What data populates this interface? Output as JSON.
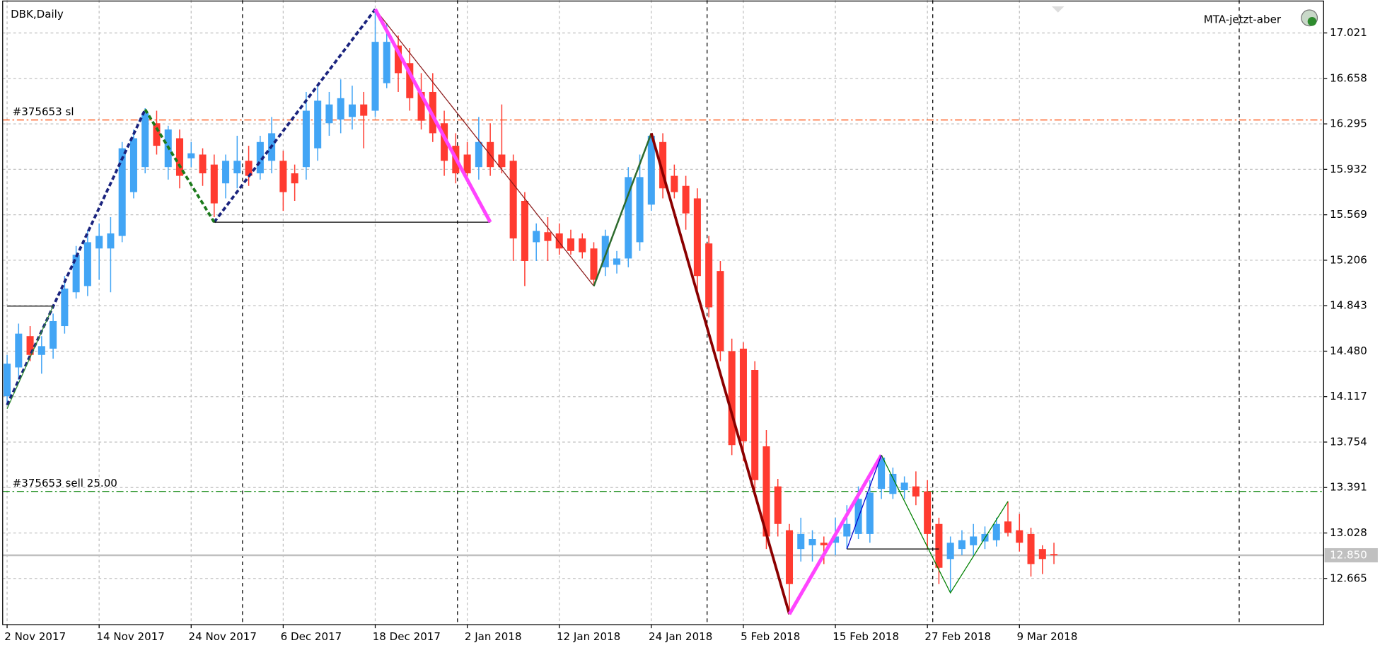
{
  "chart_data": {
    "type": "candlestick",
    "title": "DBK,Daily",
    "indicator": "MTA-jetzt-aber",
    "categories": [
      "2 Nov 2017",
      null,
      null,
      null,
      null,
      null,
      null,
      null,
      "14 Nov 2017",
      null,
      null,
      null,
      null,
      null,
      null,
      null,
      "24 Nov 2017",
      null,
      null,
      null,
      null,
      null,
      null,
      null,
      "6 Dec 2017",
      null,
      null,
      null,
      null,
      null,
      null,
      null,
      "18 Dec 2017",
      null,
      null,
      null,
      null,
      null,
      null,
      null,
      "2 Jan 2018",
      null,
      null,
      null,
      null,
      null,
      null,
      null,
      "12 Jan 2018",
      null,
      null,
      null,
      null,
      null,
      null,
      null,
      "24 Jan 2018",
      null,
      null,
      null,
      null,
      null,
      null,
      null,
      "5 Feb 2018",
      null,
      null,
      null,
      null,
      null,
      null,
      null,
      "15 Feb 2018",
      null,
      null,
      null,
      null,
      null,
      null,
      null,
      "27 Feb 2018",
      null,
      null,
      null,
      null,
      null,
      null,
      null,
      "9 Mar 2018",
      null,
      null,
      null
    ],
    "open": [
      14.12,
      14.35,
      14.6,
      14.45,
      14.5,
      14.68,
      14.95,
      15.0,
      15.3,
      15.3,
      15.4,
      15.75,
      15.95,
      16.3,
      15.95,
      16.18,
      16.02,
      16.05,
      15.97,
      15.82,
      15.9,
      16.0,
      15.9,
      16.0,
      16.0,
      15.9,
      15.95,
      16.1,
      16.3,
      16.33,
      16.35,
      16.45,
      16.4,
      16.62,
      16.92,
      16.78,
      16.55,
      16.55,
      16.3,
      16.12,
      16.05,
      15.95,
      16.15,
      16.05,
      16.0,
      15.68,
      15.35,
      15.43,
      15.42,
      15.38,
      15.38,
      15.3,
      15.15,
      15.17,
      15.22,
      15.35,
      15.65,
      16.15,
      15.88,
      15.8,
      15.7,
      15.34,
      15.12,
      14.48,
      14.5,
      14.33,
      13.72,
      13.4,
      13.05,
      12.9,
      12.93,
      12.95,
      12.95,
      13.0,
      13.02,
      13.02,
      13.38,
      13.34,
      13.37,
      13.4,
      13.36,
      13.1,
      12.82,
      12.9,
      12.93,
      12.96,
      12.97,
      13.12,
      13.05,
      13.02,
      12.9,
      12.86
    ],
    "high": [
      14.45,
      14.7,
      14.68,
      14.6,
      14.78,
      15.08,
      15.32,
      15.45,
      15.5,
      15.55,
      16.15,
      16.25,
      16.42,
      16.4,
      16.28,
      16.25,
      16.15,
      16.1,
      16.05,
      16.05,
      16.2,
      16.12,
      16.2,
      16.35,
      16.08,
      15.97,
      16.55,
      16.6,
      16.55,
      16.65,
      16.6,
      16.55,
      17.21,
      17.1,
      17.0,
      16.9,
      16.7,
      16.7,
      16.4,
      16.22,
      16.15,
      16.35,
      16.3,
      16.45,
      16.05,
      15.75,
      15.5,
      15.55,
      15.5,
      15.45,
      15.42,
      15.35,
      15.45,
      15.28,
      15.95,
      16.05,
      16.22,
      16.22,
      15.97,
      15.88,
      15.78,
      15.4,
      15.2,
      14.58,
      14.55,
      14.4,
      13.85,
      13.46,
      13.1,
      13.15,
      13.05,
      13.0,
      13.15,
      13.25,
      13.4,
      13.45,
      13.65,
      13.55,
      13.48,
      13.52,
      13.45,
      13.15,
      13.0,
      13.05,
      13.1,
      13.08,
      13.15,
      13.28,
      13.18,
      13.07,
      12.93,
      12.95
    ],
    "low": [
      14.05,
      14.25,
      14.4,
      14.3,
      14.42,
      14.62,
      14.9,
      14.92,
      15.05,
      14.95,
      15.35,
      15.7,
      15.9,
      16.05,
      15.85,
      15.78,
      15.95,
      15.8,
      15.55,
      15.7,
      15.78,
      15.8,
      15.85,
      15.9,
      15.6,
      15.68,
      15.85,
      16.0,
      16.2,
      16.22,
      16.25,
      16.1,
      16.35,
      16.58,
      16.55,
      16.4,
      16.25,
      16.15,
      15.88,
      15.82,
      15.85,
      15.85,
      15.88,
      15.9,
      15.2,
      15.0,
      15.2,
      15.2,
      15.25,
      15.25,
      15.22,
      15.0,
      15.08,
      15.1,
      15.15,
      15.28,
      15.6,
      15.7,
      15.7,
      15.45,
      14.95,
      14.75,
      14.4,
      13.65,
      13.6,
      13.35,
      12.9,
      13.0,
      12.38,
      12.8,
      12.8,
      12.78,
      12.85,
      12.9,
      12.98,
      12.95,
      13.3,
      13.3,
      13.3,
      13.25,
      12.9,
      12.62,
      12.55,
      12.85,
      12.85,
      12.9,
      12.92,
      13.0,
      12.88,
      12.68,
      12.7,
      12.78
    ],
    "close": [
      14.38,
      14.62,
      14.45,
      14.52,
      14.72,
      14.98,
      15.25,
      15.35,
      15.4,
      15.42,
      16.1,
      16.18,
      16.38,
      16.12,
      16.25,
      15.88,
      16.06,
      15.9,
      15.66,
      16.0,
      16.0,
      15.88,
      16.15,
      16.22,
      15.75,
      15.82,
      16.4,
      16.48,
      16.45,
      16.5,
      16.45,
      16.36,
      16.95,
      16.95,
      16.7,
      16.5,
      16.32,
      16.22,
      16.0,
      15.9,
      15.9,
      16.15,
      15.95,
      15.95,
      15.38,
      15.2,
      15.44,
      15.36,
      15.3,
      15.28,
      15.27,
      15.05,
      15.4,
      15.22,
      15.87,
      15.87,
      16.2,
      15.78,
      15.75,
      15.58,
      15.08,
      14.83,
      14.48,
      13.73,
      13.76,
      13.45,
      13.0,
      13.1,
      12.62,
      13.02,
      12.98,
      12.93,
      13.0,
      13.1,
      13.3,
      13.35,
      13.63,
      13.5,
      13.43,
      13.32,
      13.02,
      12.75,
      12.95,
      12.97,
      13.0,
      13.02,
      13.1,
      13.03,
      12.95,
      12.78,
      12.82,
      12.85
    ],
    "up_color": "#42a5f5",
    "down_color": "#ff3b30",
    "ylim": [
      12.296,
      17.283
    ],
    "yticks": [
      17.021,
      16.658,
      16.295,
      15.932,
      15.569,
      15.206,
      14.843,
      {
        "value": 14.48,
        "label": "14.480"
      },
      14.117,
      13.754,
      13.391,
      13.028,
      12.665
    ],
    "grid": true,
    "levels": [
      {
        "label": "#375653 sl",
        "value": 16.326,
        "color": "#ff4500"
      },
      {
        "label": "#375653 sell 25.00",
        "value": 13.36,
        "color": "#008000"
      }
    ],
    "price_line": {
      "value": 12.85,
      "label": "12.850",
      "color": "#c0c0c0"
    },
    "overlays": [
      {
        "color": "#1a237e",
        "width": 3,
        "dash": true,
        "x": [
          0,
          12
        ],
        "y": [
          14.05,
          16.41
        ]
      },
      {
        "color": "#1a237e",
        "width": 3,
        "dash": true,
        "x": [
          18,
          32
        ],
        "y": [
          15.51,
          17.21
        ]
      },
      {
        "color": "#1b7a1b",
        "width": 3,
        "dash": true,
        "x": [
          12,
          18
        ],
        "y": [
          16.41,
          15.51
        ]
      },
      {
        "color": "#000000",
        "width": 1,
        "dash": false,
        "x": [
          18,
          42
        ],
        "y": [
          15.51,
          15.51
        ]
      },
      {
        "color": "#000000",
        "width": 1,
        "dash": false,
        "x": [
          0,
          4
        ],
        "y": [
          14.84,
          14.84
        ]
      },
      {
        "color": "#2e8b2e",
        "width": 1,
        "dash": false,
        "x": [
          0,
          4
        ],
        "y": [
          14.02,
          14.84
        ]
      },
      {
        "color": "#8b1a1a",
        "width": 1,
        "dash": false,
        "x": [
          32,
          51
        ],
        "y": [
          17.21,
          15.0
        ]
      },
      {
        "color": "#ff44ff",
        "width": 4,
        "dash": false,
        "x": [
          32,
          42
        ],
        "y": [
          17.21,
          15.51
        ]
      },
      {
        "color": "#2e6b2e",
        "width": 2,
        "dash": false,
        "x": [
          51,
          56
        ],
        "y": [
          15.0,
          16.22
        ]
      },
      {
        "color": "#8b0000",
        "width": 3,
        "dash": false,
        "x": [
          56,
          68
        ],
        "y": [
          16.22,
          12.38
        ]
      },
      {
        "color": "#ff44ff",
        "width": 4,
        "dash": false,
        "x": [
          68,
          76
        ],
        "y": [
          12.38,
          13.65
        ]
      },
      {
        "color": "#0000cd",
        "width": 1,
        "dash": false,
        "x": [
          73,
          76
        ],
        "y": [
          12.9,
          13.65
        ]
      },
      {
        "color": "#000000",
        "width": 1,
        "dash": false,
        "x": [
          73,
          81
        ],
        "y": [
          12.9,
          12.9
        ]
      },
      {
        "color": "#008000",
        "width": 1,
        "dash": false,
        "x": [
          76,
          82,
          87
        ],
        "y": [
          13.65,
          12.55,
          13.28
        ]
      }
    ]
  }
}
